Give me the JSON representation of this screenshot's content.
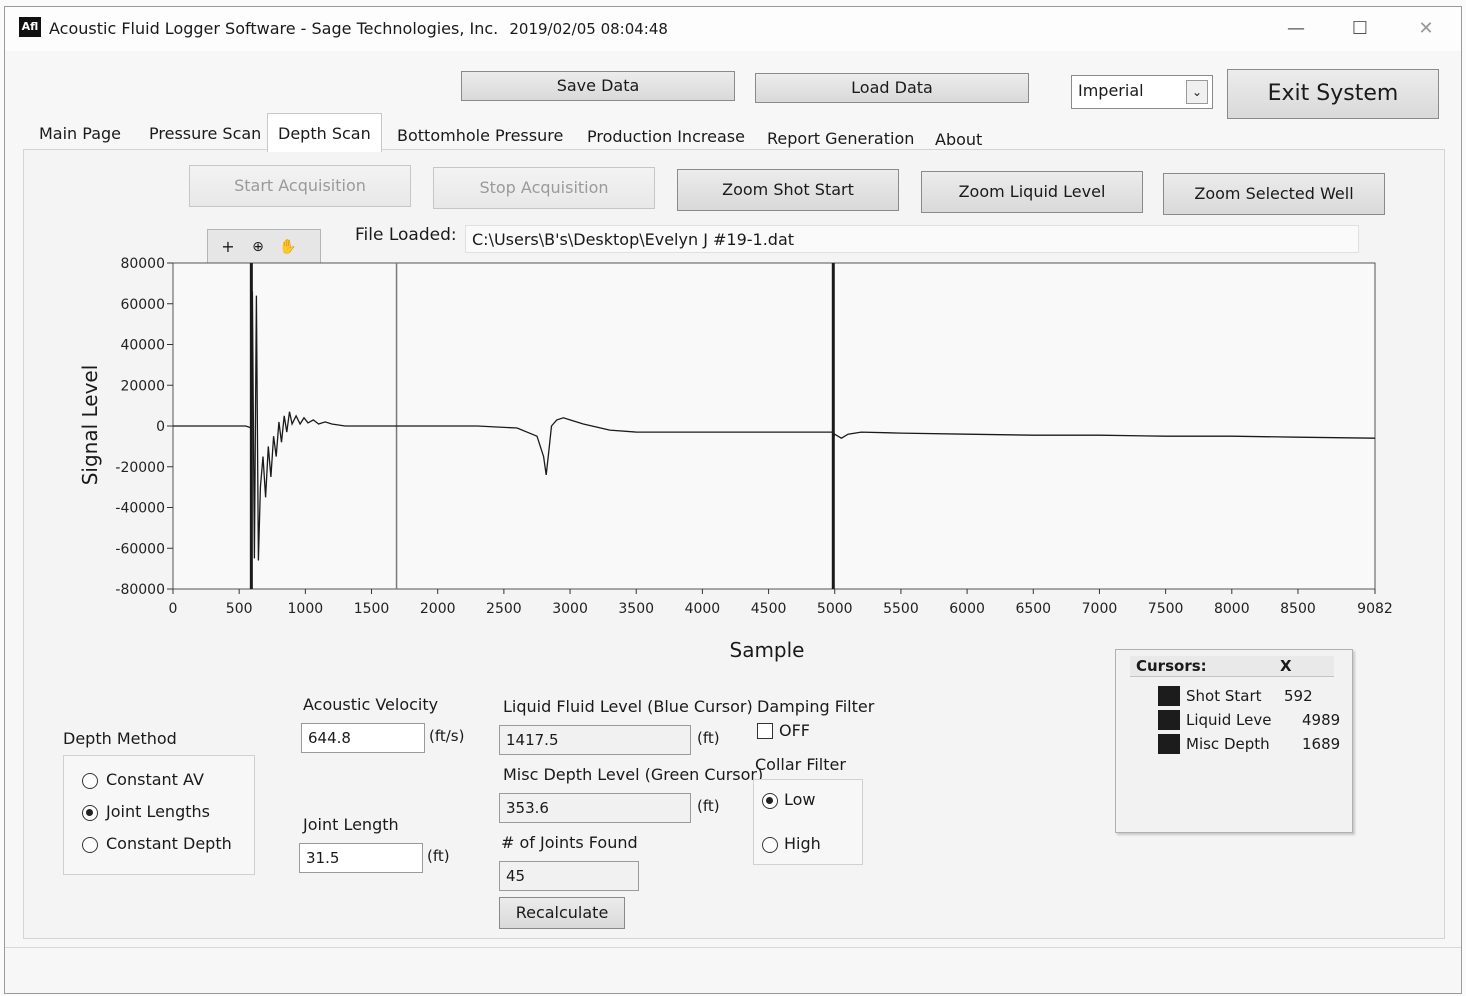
{
  "window": {
    "app_icon_text": "Afl",
    "title": "Acoustic Fluid Logger Software - Sage Technologies, Inc.",
    "timestamp": "2019/02/05 08:04:48",
    "minimize_glyph": "—",
    "maximize_glyph": "☐",
    "close_glyph": "✕"
  },
  "toolbar": {
    "save_label": "Save Data",
    "load_label": "Load Data",
    "units_selected": "Imperial",
    "exit_label": "Exit System"
  },
  "tabs": [
    {
      "label": "Main Page"
    },
    {
      "label": "Pressure Scan"
    },
    {
      "label": "Depth Scan"
    },
    {
      "label": "Bottomhole Pressure"
    },
    {
      "label": "Production Increase"
    },
    {
      "label": "Report Generation"
    },
    {
      "label": "About"
    }
  ],
  "actions": {
    "start": "Start Acquisition",
    "stop": "Stop Acquisition",
    "zoom_shot": "Zoom Shot Start",
    "zoom_liquid": "Zoom Liquid Level",
    "zoom_well": "Zoom Selected Well"
  },
  "file": {
    "label": "File Loaded:",
    "path": "C:\\Users\\B's\\Desktop\\Evelyn J #19-1.dat"
  },
  "graph_tools": [
    "crosshair-tool-icon",
    "zoom-tool-icon",
    "pan-hand-icon"
  ],
  "chart_data": {
    "type": "line",
    "xlabel": "Sample",
    "ylabel": "Signal Level",
    "xlim": [
      0,
      9082
    ],
    "ylim": [
      -80000,
      80000
    ],
    "x_ticks": [
      "0",
      "500",
      "1000",
      "1500",
      "2000",
      "2500",
      "3000",
      "3500",
      "4000",
      "4500",
      "5000",
      "5500",
      "6000",
      "6500",
      "7000",
      "7500",
      "8000",
      "8500",
      "9082"
    ],
    "y_ticks": [
      "80000",
      "60000",
      "40000",
      "20000",
      "0",
      "-20000",
      "-40000",
      "-60000",
      "-80000"
    ],
    "grid": false,
    "series": [
      {
        "x": [
          0,
          550,
          592,
          600,
          615,
          630,
          645,
          660,
          680,
          700,
          720,
          740,
          760,
          780,
          800,
          820,
          840,
          860,
          880,
          900,
          930,
          960,
          990,
          1020,
          1060,
          1100,
          1150,
          1200,
          1300,
          1400,
          1500,
          1700,
          2000,
          2300,
          2600,
          2750,
          2800,
          2820,
          2840,
          2860,
          2900,
          2950,
          3000,
          3100,
          3300,
          3500,
          4000,
          4500,
          4985,
          4990,
          5000,
          5050,
          5100,
          5200,
          5500,
          6000,
          6500,
          7000,
          7500,
          8000,
          8500,
          9082
        ],
        "y": [
          0,
          0,
          -1000,
          66000,
          -65000,
          64000,
          -66000,
          -30000,
          -15000,
          -35000,
          -10000,
          -25000,
          -5000,
          -15000,
          2000,
          -8000,
          5000,
          -3000,
          7000,
          1000,
          5000,
          1000,
          4000,
          1500,
          3000,
          1000,
          2000,
          1000,
          0,
          0,
          0,
          0,
          0,
          0,
          -1000,
          -5000,
          -15000,
          -24000,
          -12000,
          0,
          3000,
          4000,
          3000,
          1000,
          -2000,
          -3000,
          -3000,
          -3000,
          -3000,
          -6000,
          -4000,
          -6000,
          -4000,
          -3000,
          -3500,
          -4000,
          -4500,
          -4500,
          -5000,
          -5000,
          -5500,
          -6000
        ]
      }
    ],
    "cursors": [
      {
        "name": "Shot Start",
        "x": 592
      },
      {
        "name": "Liquid Level",
        "x": 4989
      },
      {
        "name": "Misc Depth",
        "x": 1689
      }
    ]
  },
  "depth_method": {
    "title": "Depth Method",
    "options": [
      "Constant AV",
      "Joint Lengths",
      "Constant Depth"
    ],
    "selected": "Joint Lengths"
  },
  "inputs": {
    "acoustic_velocity_label": "Acoustic Velocity",
    "acoustic_velocity": "644.8",
    "acoustic_velocity_unit": "(ft/s)",
    "joint_length_label": "Joint Length",
    "joint_length": "31.5",
    "joint_length_unit": "(ft)",
    "liquid_level_label": "Liquid Fluid Level (Blue Cursor)",
    "liquid_level": "1417.5",
    "liquid_level_unit": "(ft)",
    "misc_depth_label": "Misc Depth Level (Green Cursor)",
    "misc_depth": "353.6",
    "misc_depth_unit": "(ft)",
    "joints_label": "# of Joints Found",
    "joints": "45",
    "recalculate_label": "Recalculate"
  },
  "damping": {
    "title": "Damping Filter",
    "label": "OFF",
    "checked": false
  },
  "collar": {
    "title": "Collar Filter",
    "options": [
      "Low",
      "High"
    ],
    "selected": "Low"
  },
  "cursors_table": {
    "title": "Cursors:",
    "col_x": "X",
    "rows": [
      {
        "name": "Shot Start",
        "x": "592"
      },
      {
        "name": "Liquid Leve",
        "x": "4989"
      },
      {
        "name": "Misc Depth",
        "x": "1689"
      }
    ]
  }
}
